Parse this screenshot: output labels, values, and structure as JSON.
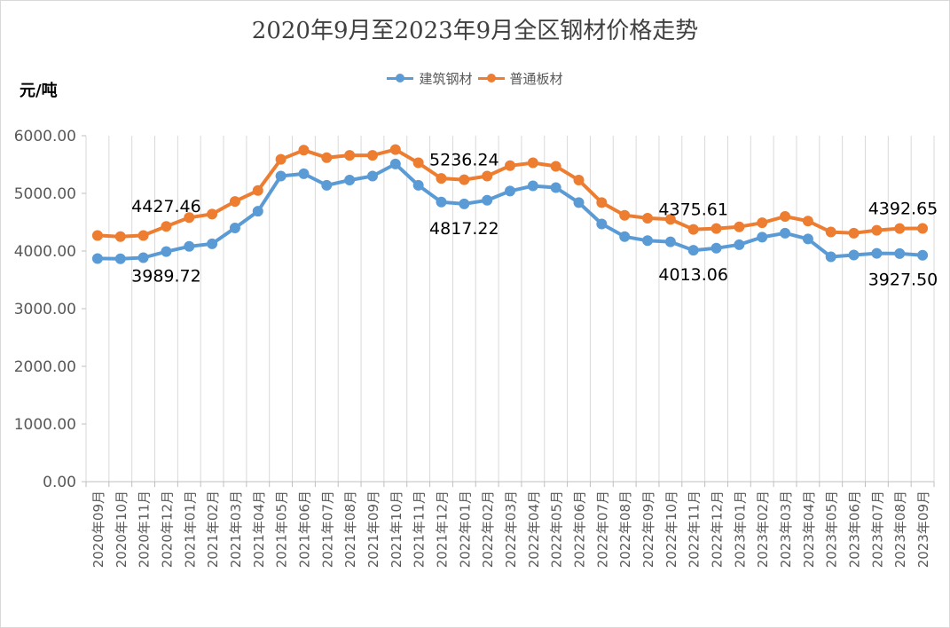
{
  "chart_data": {
    "type": "line",
    "title": "2020年9月至2023年9月全区钢材价格走势",
    "ylabel": "元/吨",
    "xlabel": "",
    "ylim": [
      0,
      6000
    ],
    "yticks": [
      "0.00",
      "1000.00",
      "2000.00",
      "3000.00",
      "4000.00",
      "5000.00",
      "6000.00"
    ],
    "grid": "vertical",
    "legend_position": "top",
    "categories": [
      "2020年09月",
      "2020年10月",
      "2020年11月",
      "2020年12月",
      "2021年01月",
      "2021年02月",
      "2021年03月",
      "2021年04月",
      "2021年05月",
      "2021年06月",
      "2021年07月",
      "2021年08月",
      "2021年09月",
      "2021年10月",
      "2021年11月",
      "2021年12月",
      "2022年01月",
      "2022年02月",
      "2022年03月",
      "2022年04月",
      "2022年05月",
      "2022年06月",
      "2022年07月",
      "2022年08月",
      "2022年09月",
      "2022年10月",
      "2022年11月",
      "2022年12月",
      "2023年01月",
      "2023年02月",
      "2023年03月",
      "2023年04月",
      "2023年05月",
      "2023年06月",
      "2023年07月",
      "2023年08月",
      "2023年09月"
    ],
    "series": [
      {
        "name": "建筑钢材",
        "color": "#5b9bd5",
        "values": [
          3870,
          3865,
          3885,
          3989.72,
          4080,
          4125,
          4400,
          4690,
          5300,
          5340,
          5140,
          5230,
          5300,
          5510,
          5140,
          4850,
          4817.22,
          4880,
          5040,
          5130,
          5100,
          4840,
          4470,
          4250,
          4180,
          4160,
          4013.06,
          4050,
          4110,
          4240,
          4310,
          4210,
          3900,
          3930,
          3960,
          3955,
          3927.5
        ]
      },
      {
        "name": "普通板材",
        "color": "#ed7d31",
        "values": [
          4270,
          4250,
          4270,
          4427.46,
          4580,
          4640,
          4860,
          5050,
          5590,
          5750,
          5620,
          5660,
          5660,
          5760,
          5530,
          5260,
          5236.24,
          5300,
          5480,
          5530,
          5470,
          5230,
          4840,
          4620,
          4570,
          4550,
          4375.61,
          4390,
          4420,
          4490,
          4600,
          4520,
          4330,
          4310,
          4360,
          4390,
          4392.65
        ]
      }
    ],
    "annotations": [
      {
        "series": 1,
        "index": 3,
        "label": "4427.46",
        "pos": "above"
      },
      {
        "series": 0,
        "index": 3,
        "label": "3989.72",
        "pos": "below"
      },
      {
        "series": 1,
        "index": 16,
        "label": "5236.24",
        "pos": "above"
      },
      {
        "series": 0,
        "index": 16,
        "label": "4817.22",
        "pos": "below"
      },
      {
        "series": 1,
        "index": 26,
        "label": "4375.61",
        "pos": "above"
      },
      {
        "series": 0,
        "index": 26,
        "label": "4013.06",
        "pos": "below"
      },
      {
        "series": 1,
        "index": 36,
        "label": "4392.65",
        "pos": "above"
      },
      {
        "series": 0,
        "index": 36,
        "label": "3927.50",
        "pos": "below"
      }
    ]
  }
}
